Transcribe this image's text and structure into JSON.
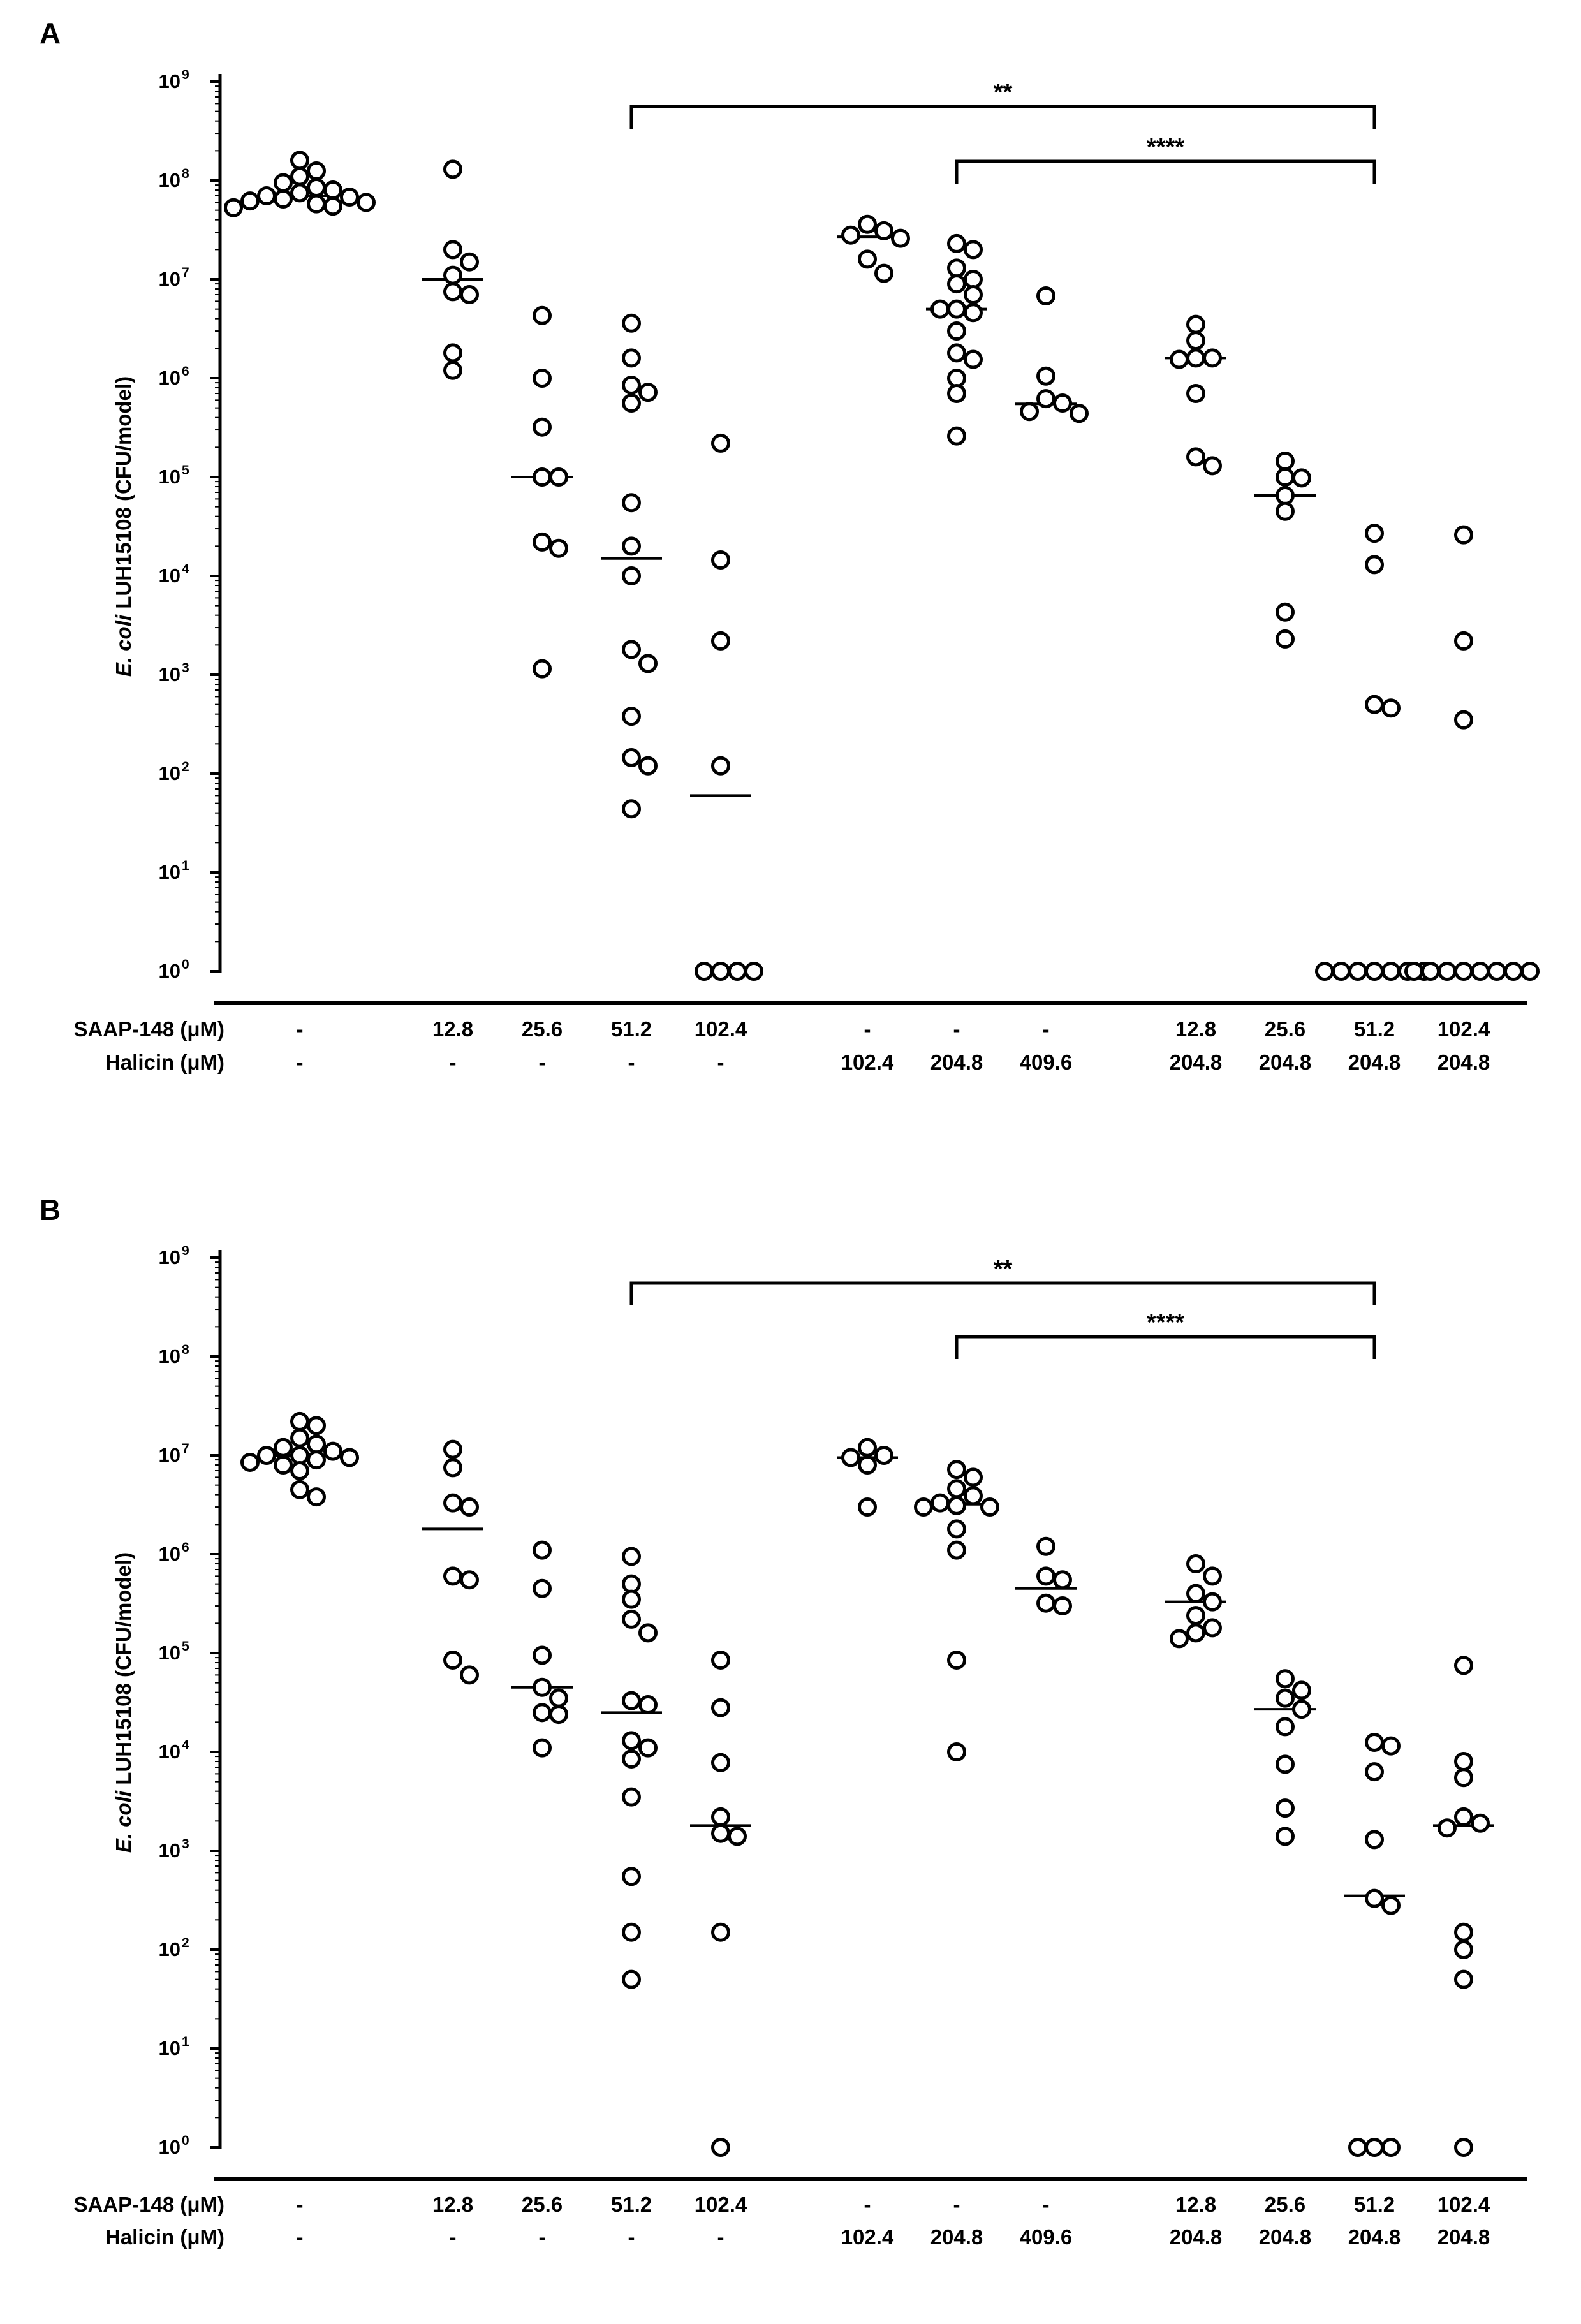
{
  "chart_data": [
    {
      "type": "scatter",
      "panel": "A",
      "y_scale": "log10",
      "ylim": [
        1,
        1000000000
      ],
      "ylabel_italic": "E. coli",
      "ylabel_rest": " LUH15108 (CFU/model)",
      "y_ticks": [
        {
          "base": "10",
          "exp": "9",
          "value": 1000000000
        },
        {
          "base": "10",
          "exp": "8",
          "value": 100000000
        },
        {
          "base": "10",
          "exp": "7",
          "value": 10000000
        },
        {
          "base": "10",
          "exp": "6",
          "value": 1000000
        },
        {
          "base": "10",
          "exp": "5",
          "value": 100000
        },
        {
          "base": "10",
          "exp": "4",
          "value": 10000
        },
        {
          "base": "10",
          "exp": "3",
          "value": 1000
        },
        {
          "base": "10",
          "exp": "2",
          "value": 100
        },
        {
          "base": "10",
          "exp": "1",
          "value": 10
        },
        {
          "base": "10",
          "exp": "0",
          "value": 1
        }
      ],
      "row_labels": [
        "SAAP-148 (μM)",
        "Halicin (μM)"
      ],
      "groups": [
        {
          "saap": "-",
          "halicin": "-",
          "median": 70000000,
          "values": [
            160000000,
            125000000,
            110000000,
            95000000,
            85000000,
            80000000,
            75000000,
            70000000,
            68000000,
            65000000,
            62000000,
            60000000,
            58000000,
            55000000,
            53000000
          ]
        },
        {
          "saap": "12.8",
          "halicin": "-",
          "median": 10000000,
          "values": [
            130000000,
            20000000,
            15000000,
            11000000,
            7500000,
            7000000,
            1800000,
            1200000
          ]
        },
        {
          "saap": "25.6",
          "halicin": "-",
          "median": 100000,
          "values": [
            4300000,
            1000000,
            320000,
            100000,
            100000,
            22000,
            19000,
            1150
          ]
        },
        {
          "saap": "51.2",
          "halicin": "-",
          "median": 15000,
          "values": [
            3600000,
            1600000,
            850000,
            720000,
            560000,
            55000,
            20000,
            10000,
            1800,
            1300,
            380,
            145,
            120,
            44
          ]
        },
        {
          "saap": "102.4",
          "halicin": "-",
          "median": 60,
          "values": [
            220000,
            14500,
            2200,
            120,
            1,
            1,
            1,
            1
          ]
        },
        {
          "saap": "-",
          "halicin": "102.4",
          "median": 27000000,
          "values": [
            36000000,
            31000000,
            28000000,
            26000000,
            16000000,
            11500000
          ]
        },
        {
          "saap": "-",
          "halicin": "204.8",
          "median": 5000000,
          "values": [
            23000000,
            20000000,
            13000000,
            10000000,
            9000000,
            7000000,
            5000000,
            5000000,
            4600000,
            3000000,
            1800000,
            1550000,
            1000000,
            700000,
            260000
          ]
        },
        {
          "saap": "-",
          "halicin": "409.6",
          "median": 550000,
          "values": [
            6800000,
            1050000,
            620000,
            560000,
            460000,
            440000
          ]
        },
        {
          "saap": "12.8",
          "halicin": "204.8",
          "median": 1600000,
          "values": [
            3500000,
            2400000,
            1600000,
            1600000,
            1550000,
            700000,
            160000,
            130000
          ]
        },
        {
          "saap": "25.6",
          "halicin": "204.8",
          "median": 65000,
          "values": [
            145000,
            100000,
            98000,
            65000,
            45000,
            4300,
            2300
          ]
        },
        {
          "saap": "51.2",
          "halicin": "204.8",
          "median": null,
          "values": [
            27000,
            13000,
            500,
            460,
            1,
            1,
            1,
            1,
            1,
            1,
            1
          ]
        },
        {
          "saap": "102.4",
          "halicin": "204.8",
          "median": null,
          "values": [
            26000,
            2200,
            350,
            1,
            1,
            1,
            1,
            1,
            1,
            1,
            1
          ]
        }
      ],
      "significance": [
        {
          "from_group": 3,
          "to_group": 10,
          "label": "**",
          "level": 0
        },
        {
          "from_group": 6,
          "to_group": 10,
          "label": "****",
          "level": 1
        }
      ]
    },
    {
      "type": "scatter",
      "panel": "B",
      "y_scale": "log10",
      "ylim": [
        1,
        1000000000
      ],
      "ylabel_italic": "E. coli",
      "ylabel_rest": " LUH15108 (CFU/model)",
      "y_ticks": [
        {
          "base": "10",
          "exp": "9",
          "value": 1000000000
        },
        {
          "base": "10",
          "exp": "8",
          "value": 100000000
        },
        {
          "base": "10",
          "exp": "7",
          "value": 10000000
        },
        {
          "base": "10",
          "exp": "6",
          "value": 1000000
        },
        {
          "base": "10",
          "exp": "5",
          "value": 100000
        },
        {
          "base": "10",
          "exp": "4",
          "value": 10000
        },
        {
          "base": "10",
          "exp": "3",
          "value": 1000
        },
        {
          "base": "10",
          "exp": "2",
          "value": 100
        },
        {
          "base": "10",
          "exp": "1",
          "value": 10
        },
        {
          "base": "10",
          "exp": "0",
          "value": 1
        }
      ],
      "row_labels": [
        "SAAP-148 (μM)",
        "Halicin (μM)"
      ],
      "groups": [
        {
          "saap": "-",
          "halicin": "-",
          "median": 10000000,
          "values": [
            22000000,
            20000000,
            15000000,
            13000000,
            12000000,
            11000000,
            10000000,
            10000000,
            9500000,
            9000000,
            8500000,
            8000000,
            7000000,
            4500000,
            3800000
          ]
        },
        {
          "saap": "12.8",
          "halicin": "-",
          "median": 1800000,
          "values": [
            11500000,
            7500000,
            3300000,
            3000000,
            600000,
            550000,
            85000,
            60000
          ]
        },
        {
          "saap": "25.6",
          "halicin": "-",
          "median": 45000,
          "values": [
            1100000,
            450000,
            95000,
            45000,
            35000,
            25000,
            24000,
            11000
          ]
        },
        {
          "saap": "51.2",
          "halicin": "-",
          "median": 25000,
          "values": [
            950000,
            500000,
            350000,
            220000,
            160000,
            33000,
            30000,
            13000,
            11000,
            8500,
            3500,
            550,
            150,
            50
          ]
        },
        {
          "saap": "102.4",
          "halicin": "-",
          "median": 1800,
          "values": [
            85000,
            28000,
            7800,
            2200,
            1500,
            1400,
            150,
            1
          ]
        },
        {
          "saap": "-",
          "halicin": "102.4",
          "median": 9500000,
          "values": [
            12000000,
            10000000,
            9500000,
            8000000,
            3000000
          ]
        },
        {
          "saap": "-",
          "halicin": "204.8",
          "median": 3200000,
          "values": [
            7200000,
            6000000,
            4600000,
            3900000,
            3300000,
            3100000,
            3000000,
            3000000,
            1800000,
            1100000,
            85000,
            10000
          ]
        },
        {
          "saap": "-",
          "halicin": "409.6",
          "median": 450000,
          "values": [
            1200000,
            600000,
            550000,
            320000,
            300000
          ]
        },
        {
          "saap": "12.8",
          "halicin": "204.8",
          "median": 330000,
          "values": [
            800000,
            600000,
            400000,
            330000,
            240000,
            180000,
            160000,
            140000
          ]
        },
        {
          "saap": "25.6",
          "halicin": "204.8",
          "median": 27000,
          "values": [
            55000,
            42000,
            35000,
            27000,
            18000,
            7500,
            2700,
            1400
          ]
        },
        {
          "saap": "51.2",
          "halicin": "204.8",
          "median": 350,
          "values": [
            12500,
            11500,
            6300,
            1300,
            330,
            280,
            1,
            1,
            1
          ]
        },
        {
          "saap": "102.4",
          "halicin": "204.8",
          "median": 1800,
          "values": [
            75000,
            8000,
            5500,
            2200,
            1900,
            1700,
            150,
            100,
            50,
            1
          ]
        }
      ],
      "significance": [
        {
          "from_group": 3,
          "to_group": 10,
          "label": "**",
          "level": 0
        },
        {
          "from_group": 6,
          "to_group": 10,
          "label": "****",
          "level": 1
        }
      ]
    }
  ]
}
